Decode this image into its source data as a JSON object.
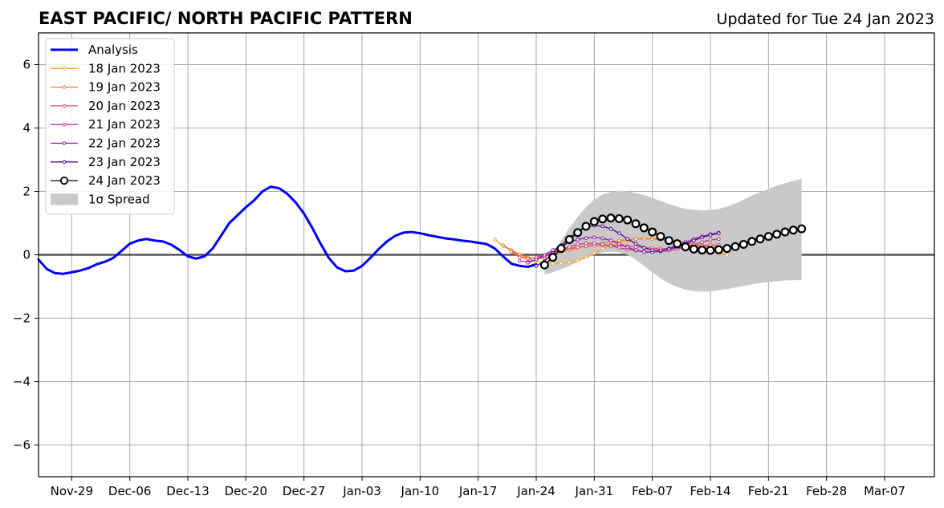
{
  "chart_data": {
    "type": "line",
    "title": "EAST PACIFIC/ NORTH PACIFIC PATTERN",
    "subtitle": "Updated for Tue 24 Jan 2023",
    "xlabel": "",
    "ylabel": "",
    "x_range": [
      "2022-11-25",
      "2023-03-13"
    ],
    "ylim": [
      -7,
      7
    ],
    "y_ticks": [
      -6,
      -4,
      -2,
      0,
      2,
      4,
      6
    ],
    "y_tick_labels": [
      "−6",
      "−4",
      "−2",
      "0",
      "2",
      "4",
      "6"
    ],
    "x_ticks": [
      "2022-11-29",
      "2022-12-06",
      "2022-12-13",
      "2022-12-20",
      "2022-12-27",
      "2023-01-03",
      "2023-01-10",
      "2023-01-17",
      "2023-01-24",
      "2023-01-31",
      "2023-02-07",
      "2023-02-14",
      "2023-02-21",
      "2023-02-28",
      "2023-03-07"
    ],
    "x_tick_labels": [
      "Nov-29",
      "Dec-06",
      "Dec-13",
      "Dec-20",
      "Dec-27",
      "Jan-03",
      "Jan-10",
      "Jan-17",
      "Jan-24",
      "Jan-31",
      "Feb-07",
      "Feb-14",
      "Feb-21",
      "Feb-28",
      "Mar-07"
    ],
    "grid": true,
    "legend_position": "top-left",
    "series": [
      {
        "name": "Analysis",
        "color": "#0000ff",
        "start": "2022-11-25",
        "values": [
          -0.15,
          -0.45,
          -0.58,
          -0.6,
          -0.55,
          -0.5,
          -0.42,
          -0.3,
          -0.22,
          -0.1,
          0.12,
          0.35,
          0.45,
          0.5,
          0.45,
          0.42,
          0.32,
          0.15,
          -0.05,
          -0.12,
          -0.05,
          0.2,
          0.6,
          1.0,
          1.25,
          1.5,
          1.72,
          2.0,
          2.15,
          2.1,
          1.92,
          1.65,
          1.3,
          0.85,
          0.35,
          -0.1,
          -0.4,
          -0.52,
          -0.5,
          -0.35,
          -0.1,
          0.18,
          0.42,
          0.6,
          0.7,
          0.72,
          0.68,
          0.62,
          0.57,
          0.52,
          0.49,
          0.45,
          0.42,
          0.38,
          0.34,
          0.2,
          -0.05,
          -0.28,
          -0.35,
          -0.38,
          -0.3
        ]
      },
      {
        "name": "18 Jan 2023",
        "color": "#f5a623",
        "start": "2023-01-19",
        "values": [
          0.48,
          0.28,
          0.12,
          0.0,
          -0.12,
          -0.2,
          -0.25,
          -0.28,
          -0.27,
          -0.24,
          -0.18,
          -0.08,
          0.06,
          0.2,
          0.3,
          0.38,
          0.45,
          0.5,
          0.52,
          0.52,
          0.5,
          0.47,
          0.43,
          0.38,
          0.32,
          0.25,
          0.15,
          0.05,
          -0.02
        ]
      },
      {
        "name": "19 Jan 2023",
        "color": "#f07c3a",
        "start": "2023-01-20",
        "values": [
          0.3,
          0.15,
          0.02,
          -0.08,
          -0.12,
          -0.1,
          -0.02,
          0.08,
          0.16,
          0.22,
          0.28,
          0.33,
          0.37,
          0.41,
          0.45,
          0.48,
          0.5,
          0.51,
          0.5,
          0.48,
          0.45,
          0.42,
          0.38,
          0.34,
          0.3,
          0.26,
          0.22,
          0.18
        ]
      },
      {
        "name": "20 Jan 2023",
        "color": "#e05565",
        "start": "2023-01-21",
        "values": [
          0.1,
          -0.08,
          -0.12,
          -0.08,
          0.0,
          0.08,
          0.15,
          0.2,
          0.24,
          0.27,
          0.29,
          0.3,
          0.3,
          0.29,
          0.27,
          0.25,
          0.23,
          0.21,
          0.2,
          0.2,
          0.21,
          0.23,
          0.26,
          0.29,
          0.31,
          0.31
        ]
      },
      {
        "name": "21 Jan 2023",
        "color": "#c03a8a",
        "start": "2023-01-22",
        "values": [
          -0.2,
          -0.22,
          -0.15,
          -0.05,
          0.05,
          0.15,
          0.25,
          0.33,
          0.36,
          0.36,
          0.33,
          0.28,
          0.22,
          0.17,
          0.13,
          0.1,
          0.09,
          0.1,
          0.13,
          0.18,
          0.25,
          0.32,
          0.4,
          0.47,
          0.5
        ]
      },
      {
        "name": "22 Jan 2023",
        "color": "#8a1aa6",
        "start": "2023-01-23",
        "values": [
          -0.25,
          -0.15,
          0.0,
          0.15,
          0.28,
          0.4,
          0.48,
          0.53,
          0.55,
          0.52,
          0.45,
          0.35,
          0.24,
          0.15,
          0.09,
          0.08,
          0.12,
          0.2,
          0.3,
          0.4,
          0.5,
          0.58,
          0.65,
          0.7
        ]
      },
      {
        "name": "23 Jan 2023",
        "color": "#4b0a8a",
        "start": "2023-01-24",
        "values": [
          -0.35,
          -0.2,
          0.05,
          0.3,
          0.55,
          0.75,
          0.88,
          0.92,
          0.9,
          0.82,
          0.68,
          0.5,
          0.35,
          0.22,
          0.15,
          0.14,
          0.18,
          0.25,
          0.35,
          0.45,
          0.55,
          0.62,
          0.68
        ]
      },
      {
        "name": "24 Jan 2023",
        "color": "#000000",
        "start": "2023-01-25",
        "values": [
          -0.32,
          -0.08,
          0.2,
          0.48,
          0.7,
          0.9,
          1.05,
          1.13,
          1.16,
          1.14,
          1.1,
          0.98,
          0.85,
          0.72,
          0.58,
          0.45,
          0.35,
          0.25,
          0.18,
          0.15,
          0.14,
          0.16,
          0.2,
          0.26,
          0.33,
          0.42,
          0.5,
          0.58,
          0.65,
          0.72,
          0.78,
          0.82
        ]
      }
    ],
    "spread": {
      "name": "1σ Spread",
      "color": "#c9c9c9",
      "start": "2023-01-25",
      "upper": [
        -0.32,
        0.0,
        0.45,
        0.85,
        1.2,
        1.5,
        1.75,
        1.9,
        1.98,
        2.02,
        2.0,
        1.95,
        1.88,
        1.8,
        1.7,
        1.6,
        1.52,
        1.45,
        1.42,
        1.4,
        1.41,
        1.45,
        1.52,
        1.62,
        1.74,
        1.87,
        1.98,
        2.08,
        2.18,
        2.26,
        2.33,
        2.4
      ],
      "lower": [
        -0.62,
        -0.55,
        -0.45,
        -0.35,
        -0.22,
        -0.1,
        0.0,
        0.08,
        0.1,
        0.08,
        0.0,
        -0.15,
        -0.35,
        -0.55,
        -0.75,
        -0.9,
        -1.02,
        -1.1,
        -1.15,
        -1.16,
        -1.15,
        -1.12,
        -1.08,
        -1.03,
        -0.98,
        -0.93,
        -0.89,
        -0.86,
        -0.83,
        -0.81,
        -0.8,
        -0.8
      ]
    }
  }
}
